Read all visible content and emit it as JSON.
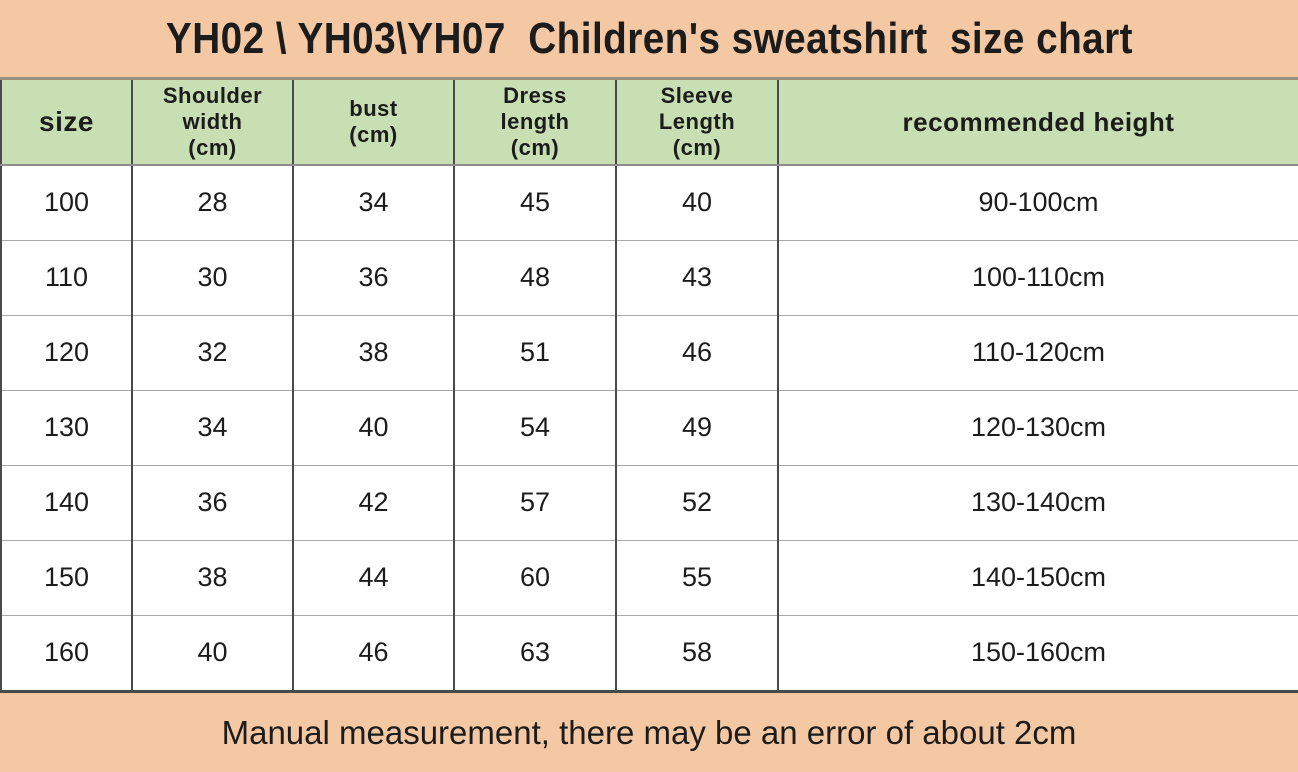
{
  "title": "YH02 \\ YH03\\YH07  Children's sweatshirt  size chart",
  "chart_data": {
    "type": "table",
    "title": "YH02 \\ YH03\\YH07  Children's sweatshirt  size chart",
    "headers": [
      "size",
      "Shoulder\nwidth\n(cm)",
      "bust\n(cm)",
      "Dress\nlength\n(cm)",
      "Sleeve\nLength\n(cm)",
      "recommended height"
    ],
    "column_keys": [
      "size",
      "shoulder-width",
      "bust",
      "dress-length",
      "sleeve-length",
      "recommended-height"
    ],
    "rows": [
      [
        "100",
        "28",
        "34",
        "45",
        "40",
        "90-100cm"
      ],
      [
        "110",
        "30",
        "36",
        "48",
        "43",
        "100-110cm"
      ],
      [
        "120",
        "32",
        "38",
        "51",
        "46",
        "110-120cm"
      ],
      [
        "130",
        "34",
        "40",
        "54",
        "49",
        "120-130cm"
      ],
      [
        "140",
        "36",
        "42",
        "57",
        "52",
        "130-140cm"
      ],
      [
        "150",
        "38",
        "44",
        "60",
        "55",
        "140-150cm"
      ],
      [
        "160",
        "40",
        "46",
        "63",
        "58",
        "150-160cm"
      ]
    ]
  },
  "footer": {
    "note": "Manual measurement, there may be an error of about 2cm"
  },
  "colors": {
    "banner_bg": "#F5C8A4",
    "header_bg": "#C8DFB3",
    "body_bg": "#FFFFFF",
    "grid_dark": "#4A4A4A",
    "grid_light": "#A8A8A8",
    "banner_sep": "#97907F",
    "text": "#1C1C1C"
  }
}
